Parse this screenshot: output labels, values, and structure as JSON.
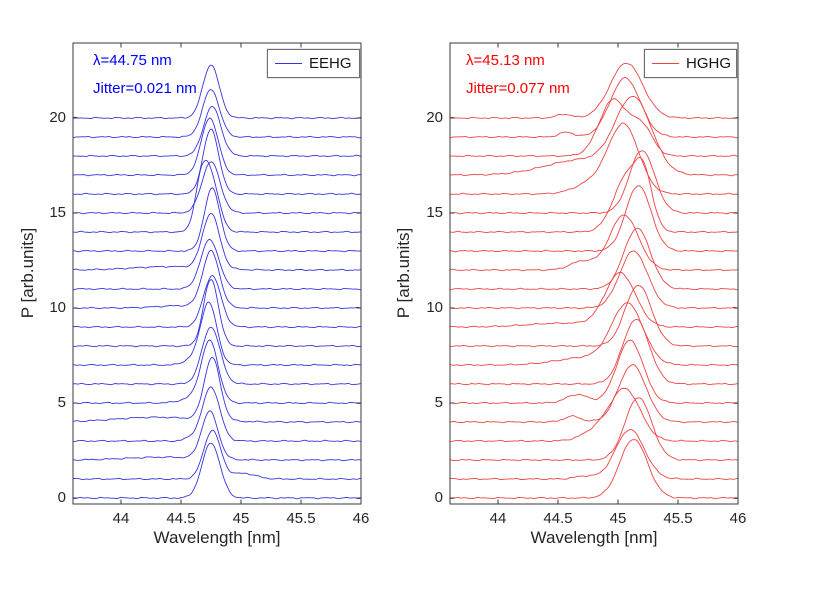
{
  "figure": {
    "background": "#ffffff",
    "axis_color": "#3a3a3a",
    "tick_label_color": "#262626"
  },
  "chart_data": [
    {
      "type": "line",
      "id": "eehg",
      "description": "Stacked single-shot spectra waterfall, 21 shots offset by 1 unit each",
      "line_color": "#3434e0",
      "text_color": "#0000ff",
      "legend": {
        "label": "EEHG",
        "position": "top-right"
      },
      "annotation": {
        "lambda": "λ=44.75 nm",
        "jitter": "Jitter=0.021 nm"
      },
      "peak_center_nm": 44.75,
      "jitter_nm": 0.021,
      "xlabel": "Wavelength [nm]",
      "ylabel": "P [arb.units]",
      "xlim": [
        43.6,
        46
      ],
      "ylim": [
        -0.3,
        23.9
      ],
      "grid": false,
      "xtick_values": [
        44,
        44.5,
        45,
        45.5,
        46
      ],
      "xtick_labels": [
        "44",
        "44.5",
        "45",
        "45.5",
        "46"
      ],
      "ytick_values": [
        0,
        5,
        10,
        15,
        20
      ],
      "ytick_labels": [
        "0",
        "5",
        "10",
        "15",
        "20"
      ],
      "traces": [
        {
          "offset": 0,
          "g": [
            [
              44.75,
              2.9,
              0.075
            ]
          ]
        },
        {
          "offset": 1,
          "g": [
            [
              44.76,
              2.55,
              0.07
            ],
            [
              45.02,
              0.3,
              0.1
            ]
          ]
        },
        {
          "offset": 2,
          "g": [
            [
              44.74,
              2.5,
              0.068
            ],
            [
              44.35,
              0.15,
              0.3
            ]
          ]
        },
        {
          "offset": 3,
          "g": [
            [
              44.75,
              2.85,
              0.072
            ],
            [
              44.58,
              0.15,
              0.05
            ]
          ]
        },
        {
          "offset": 4,
          "g": [
            [
              44.76,
              3.3,
              0.066
            ],
            [
              44.3,
              0.25,
              0.35
            ]
          ]
        },
        {
          "offset": 5,
          "g": [
            [
              44.74,
              3.2,
              0.07
            ],
            [
              44.6,
              0.25,
              0.1
            ]
          ]
        },
        {
          "offset": 6,
          "g": [
            [
              44.75,
              3.0,
              0.075
            ]
          ]
        },
        {
          "offset": 7,
          "g": [
            [
              44.73,
              3.3,
              0.068
            ],
            [
              44.57,
              0.22,
              0.06
            ]
          ]
        },
        {
          "offset": 8,
          "g": [
            [
              44.75,
              3.5,
              0.062
            ]
          ]
        },
        {
          "offset": 9,
          "g": [
            [
              44.76,
              2.7,
              0.072
            ]
          ]
        },
        {
          "offset": 10,
          "g": [
            [
              44.75,
              2.95,
              0.07
            ],
            [
              44.5,
              0.12,
              0.2
            ]
          ]
        },
        {
          "offset": 11,
          "g": [
            [
              44.74,
              2.6,
              0.075
            ]
          ]
        },
        {
          "offset": 12,
          "g": [
            [
              44.75,
              2.9,
              0.07
            ],
            [
              44.4,
              0.18,
              0.3
            ]
          ]
        },
        {
          "offset": 13,
          "g": [
            [
              44.76,
              3.3,
              0.065
            ]
          ]
        },
        {
          "offset": 14,
          "g": [
            [
              44.74,
              3.05,
              0.07
            ],
            [
              44.66,
              1.6,
              0.05
            ]
          ]
        },
        {
          "offset": 15,
          "g": [
            [
              44.75,
              2.7,
              0.075
            ]
          ]
        },
        {
          "offset": 16,
          "g": [
            [
              44.75,
              3.4,
              0.065
            ]
          ]
        },
        {
          "offset": 17,
          "g": [
            [
              44.74,
              3.0,
              0.07
            ]
          ]
        },
        {
          "offset": 18,
          "g": [
            [
              44.76,
              2.6,
              0.072
            ]
          ]
        },
        {
          "offset": 19,
          "g": [
            [
              44.75,
              2.5,
              0.07
            ]
          ]
        },
        {
          "offset": 20,
          "g": [
            [
              44.75,
              2.8,
              0.068
            ]
          ]
        }
      ]
    },
    {
      "type": "line",
      "id": "hghg",
      "description": "Stacked single-shot spectra waterfall, 21 shots offset by 1 unit each",
      "line_color": "#ef4343",
      "text_color": "#ff0000",
      "legend": {
        "label": "HGHG",
        "position": "top-right"
      },
      "annotation": {
        "lambda": "λ=45.13 nm",
        "jitter": "Jitter=0.077 nm"
      },
      "peak_center_nm": 45.13,
      "jitter_nm": 0.077,
      "xlabel": "Wavelength [nm]",
      "ylabel": "P [arb.units]",
      "xlim": [
        43.6,
        46
      ],
      "ylim": [
        -0.3,
        23.9
      ],
      "grid": false,
      "xtick_values": [
        44,
        44.5,
        45,
        45.5,
        46
      ],
      "xtick_labels": [
        "44",
        "44.5",
        "45",
        "45.5",
        "46"
      ],
      "ytick_values": [
        0,
        5,
        10,
        15,
        20
      ],
      "ytick_labels": [
        "0",
        "5",
        "10",
        "15",
        "20"
      ],
      "traces": [
        {
          "offset": 0,
          "g": [
            [
              45.13,
              3.1,
              0.115
            ]
          ]
        },
        {
          "offset": 1,
          "g": [
            [
              45.1,
              2.6,
              0.12
            ],
            [
              44.72,
              0.15,
              0.08
            ]
          ]
        },
        {
          "offset": 2,
          "g": [
            [
              45.17,
              3.3,
              0.11
            ]
          ]
        },
        {
          "offset": 3,
          "g": [
            [
              45.06,
              2.7,
              0.125
            ],
            [
              44.82,
              0.5,
              0.12
            ]
          ]
        },
        {
          "offset": 4,
          "g": [
            [
              45.12,
              3.0,
              0.115
            ],
            [
              44.62,
              0.3,
              0.07
            ]
          ]
        },
        {
          "offset": 5,
          "g": [
            [
              45.1,
              3.3,
              0.11
            ],
            [
              44.66,
              0.45,
              0.09
            ]
          ]
        },
        {
          "offset": 6,
          "g": [
            [
              45.15,
              3.4,
              0.11
            ]
          ]
        },
        {
          "offset": 7,
          "g": [
            [
              45.08,
              3.1,
              0.13
            ],
            [
              44.75,
              0.4,
              0.25
            ]
          ]
        },
        {
          "offset": 8,
          "g": [
            [
              45.17,
              3.2,
              0.11
            ]
          ]
        },
        {
          "offset": 9,
          "g": [
            [
              45.02,
              2.8,
              0.125
            ],
            [
              44.55,
              0.2,
              0.3
            ]
          ]
        },
        {
          "offset": 10,
          "g": [
            [
              45.13,
              3.0,
              0.115
            ]
          ]
        },
        {
          "offset": 11,
          "g": [
            [
              45.16,
              3.2,
              0.11
            ]
          ]
        },
        {
          "offset": 12,
          "g": [
            [
              45.05,
              2.9,
              0.12
            ],
            [
              44.7,
              0.45,
              0.1
            ]
          ]
        },
        {
          "offset": 13,
          "g": [
            [
              45.17,
              3.45,
              0.105
            ]
          ]
        },
        {
          "offset": 14,
          "g": [
            [
              45.08,
              2.95,
              0.115
            ],
            [
              45.22,
              2.2,
              0.07
            ]
          ]
        },
        {
          "offset": 15,
          "g": [
            [
              45.2,
              3.3,
              0.105
            ]
          ]
        },
        {
          "offset": 16,
          "g": [
            [
              45.05,
              3.55,
              0.125
            ],
            [
              44.8,
              0.6,
              0.15
            ]
          ]
        },
        {
          "offset": 17,
          "g": [
            [
              45.13,
              3.85,
              0.15
            ],
            [
              44.7,
              0.8,
              0.3
            ]
          ]
        },
        {
          "offset": 18,
          "g": [
            [
              44.96,
              2.95,
              0.115
            ],
            [
              45.2,
              1.5,
              0.09
            ]
          ]
        },
        {
          "offset": 19,
          "g": [
            [
              45.06,
              3.1,
              0.125
            ],
            [
              44.57,
              0.25,
              0.06
            ]
          ]
        },
        {
          "offset": 20,
          "g": [
            [
              45.07,
              2.9,
              0.135
            ],
            [
              44.55,
              0.2,
              0.06
            ]
          ]
        }
      ]
    }
  ]
}
